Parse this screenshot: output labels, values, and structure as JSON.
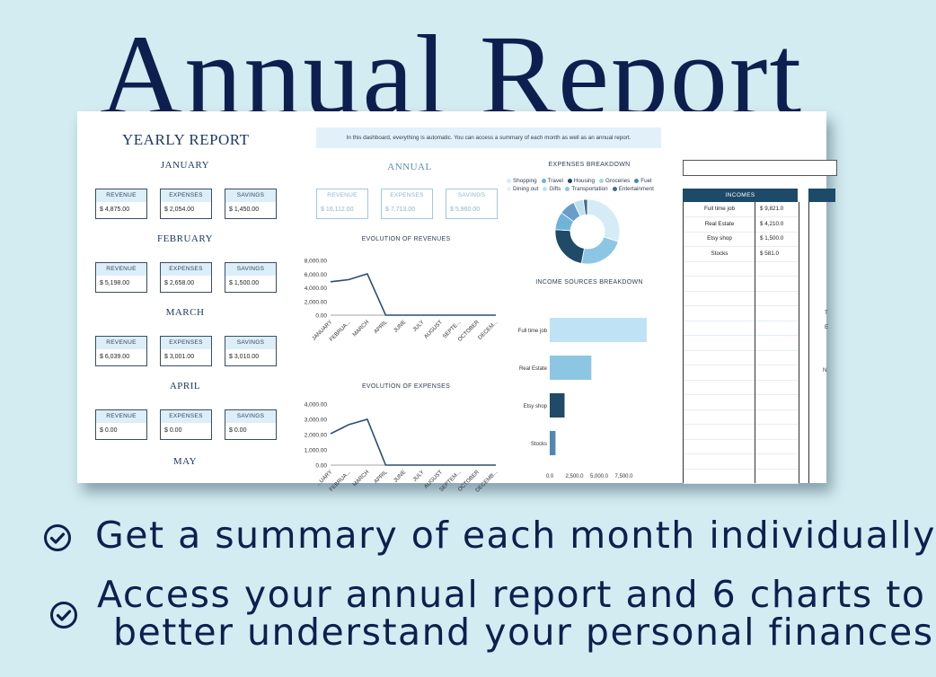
{
  "hero": {
    "title": "Annual Report",
    "bullets": [
      "Get a summary of each month individually",
      "Access your annual report and 6 charts to",
      "better understand your personal finances"
    ]
  },
  "sheet": {
    "yearly_title": "YEARLY REPORT",
    "info_text": "In this dashboard, everything is automatic. You can access a summary of each month as well as an annual report.",
    "labels": {
      "revenue": "REVENUE",
      "expenses": "EXPENSES",
      "savings": "SAVINGS"
    },
    "months": [
      {
        "name": "JANUARY",
        "revenue": "$  4,875.00",
        "expenses": "$  2,054.00",
        "savings": "$  1,450.00"
      },
      {
        "name": "FEBRUARY",
        "revenue": "$  5,198.00",
        "expenses": "$  2,658.00",
        "savings": "$  1,500.00"
      },
      {
        "name": "MARCH",
        "revenue": "$  6,039.00",
        "expenses": "$  3,001.00",
        "savings": "$  3,010.00"
      },
      {
        "name": "APRIL",
        "revenue": "$  0.00",
        "expenses": "$  0.00",
        "savings": "$  0.00"
      }
    ],
    "next_month": "MAY",
    "annual": {
      "title": "ANNUAL",
      "revenue": "$  16,112.00",
      "expenses": "$  7,713.00",
      "savings": "$  5,960.00"
    },
    "incomes": {
      "header": "INCOMES",
      "rows": [
        {
          "name": "Full time job",
          "value": "$  9,821.0"
        },
        {
          "name": "Real Estate",
          "value": "$  4,210.0"
        },
        {
          "name": "Etsy shop",
          "value": "$  1,500.0"
        },
        {
          "name": "Stocks",
          "value": "$  581.0"
        }
      ],
      "fragments": [
        "T",
        "E",
        "N"
      ]
    }
  },
  "chart_data": [
    {
      "type": "line",
      "title": "EVOLUTION OF REVENUES",
      "categories": [
        "JANUARY",
        "FEBRUA...",
        "MARCH",
        "APRIL",
        "JUNE",
        "JULY",
        "AUGUST",
        "SEPTE...",
        "OCTOBER",
        "DECEM..."
      ],
      "values": [
        4875,
        5198,
        6039,
        0,
        0,
        0,
        0,
        0,
        0,
        0
      ],
      "ylim": [
        0,
        8000
      ],
      "yticks": [
        "0.00",
        "2,000.00",
        "4,000.00",
        "6,000.00",
        "8,000.00"
      ],
      "color": "#2a4e72"
    },
    {
      "type": "line",
      "title": "EVOLUTION OF EXPENSES",
      "categories": [
        "...UARY",
        "FEBRUA...",
        "MARCH",
        "APRIL",
        "JUNE",
        "JULY",
        "AUGUST",
        "SEPTEM...",
        "OCTOBER",
        "DECEMB..."
      ],
      "values": [
        2054,
        2658,
        3001,
        0,
        0,
        0,
        0,
        0,
        0,
        0
      ],
      "ylim": [
        0,
        4000
      ],
      "yticks": [
        "0.00",
        "1,000.00",
        "2,000.00",
        "3,000.00",
        "4,000.00"
      ],
      "color": "#2a4e72"
    },
    {
      "type": "pie",
      "title": "EXPENSES BREAKDOWN",
      "legend": [
        {
          "name": "Shopping",
          "color": "#d5ecf7"
        },
        {
          "name": "Travel",
          "color": "#6fb3d8"
        },
        {
          "name": "Housing",
          "color": "#1f4a68"
        },
        {
          "name": "Groceries",
          "color": "#a6d4ea"
        },
        {
          "name": "Fuel",
          "color": "#4f87b3"
        },
        {
          "name": "Dining out",
          "color": "#e7f3f9"
        },
        {
          "name": "Gifts",
          "color": "#c0e0f0"
        },
        {
          "name": "Transportation",
          "color": "#8cc6e2"
        },
        {
          "name": "Entertainment",
          "color": "#3d6b8f"
        }
      ],
      "slices": [
        {
          "name": "Shopping",
          "value": 30,
          "color": "#d5ecf7"
        },
        {
          "name": "Groceries",
          "value": 23,
          "color": "#8cc6e2"
        },
        {
          "name": "Housing",
          "value": 23,
          "color": "#1f4a68"
        },
        {
          "name": "Travel",
          "value": 9,
          "color": "#6fb3d8"
        },
        {
          "name": "Fuel",
          "value": 8,
          "color": "#6a9cc8"
        },
        {
          "name": "Gifts",
          "value": 5,
          "color": "#c0e0f0"
        },
        {
          "name": "Dining out",
          "value": 2,
          "color": "#3d6b8f"
        }
      ]
    },
    {
      "type": "bar",
      "orientation": "horizontal",
      "title": "INCOME SOURCES BREAKDOWN",
      "categories": [
        "Full time job",
        "Real Estate",
        "Etsy shop",
        "Stocks"
      ],
      "values": [
        9821,
        4210,
        1500,
        581
      ],
      "xlim": [
        0,
        10000
      ],
      "xticks": [
        "0.0",
        "2,500.0",
        "5,000.0",
        "7,500.0"
      ],
      "colors": [
        "#bfe3f4",
        "#8cc6e2",
        "#1f4a68",
        "#4f87b3"
      ]
    }
  ]
}
